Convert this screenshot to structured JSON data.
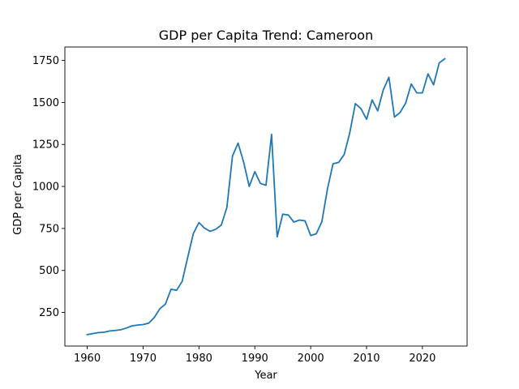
{
  "chart_data": {
    "type": "line",
    "title": "GDP per Capita Trend: Cameroon",
    "xlabel": "Year",
    "ylabel": "GDP per Capita",
    "xlim": [
      1956,
      2028
    ],
    "ylim": [
      50,
      1830
    ],
    "grid": false,
    "legend": "none",
    "x_ticks": [
      1960,
      1970,
      1980,
      1990,
      2000,
      2010,
      2020
    ],
    "y_ticks": [
      250,
      500,
      750,
      1000,
      1250,
      1500,
      1750
    ],
    "y_tick_labels": [
      "250",
      "500",
      "750",
      "1000",
      "1250",
      "1500",
      "1750"
    ],
    "x_tick_labels": [
      "1960",
      "1970",
      "1980",
      "1990",
      "2000",
      "2010",
      "2020"
    ],
    "series": [
      {
        "color": "#1f77b4",
        "x": [
          1960,
          1961,
          1962,
          1963,
          1964,
          1965,
          1966,
          1967,
          1968,
          1969,
          1970,
          1971,
          1972,
          1973,
          1974,
          1975,
          1976,
          1977,
          1978,
          1979,
          1980,
          1981,
          1982,
          1983,
          1984,
          1985,
          1986,
          1987,
          1988,
          1989,
          1990,
          1991,
          1992,
          1993,
          1994,
          1995,
          1996,
          1997,
          1998,
          1999,
          2000,
          2001,
          2002,
          2003,
          2004,
          2005,
          2006,
          2007,
          2008,
          2009,
          2010,
          2011,
          2012,
          2013,
          2014,
          2015,
          2016,
          2017,
          2018,
          2019,
          2020,
          2021,
          2022,
          2023,
          2024
        ],
        "y": [
          118,
          124,
          130,
          132,
          140,
          143,
          147,
          157,
          170,
          175,
          178,
          186,
          220,
          272,
          300,
          388,
          382,
          435,
          580,
          720,
          785,
          752,
          733,
          745,
          770,
          875,
          1180,
          1258,
          1145,
          1000,
          1088,
          1018,
          1007,
          1310,
          700,
          835,
          830,
          788,
          800,
          795,
          708,
          718,
          790,
          985,
          1135,
          1143,
          1190,
          1320,
          1493,
          1463,
          1400,
          1515,
          1450,
          1575,
          1650,
          1413,
          1440,
          1496,
          1610,
          1557,
          1557,
          1670,
          1605,
          1735,
          1760
        ]
      }
    ]
  }
}
